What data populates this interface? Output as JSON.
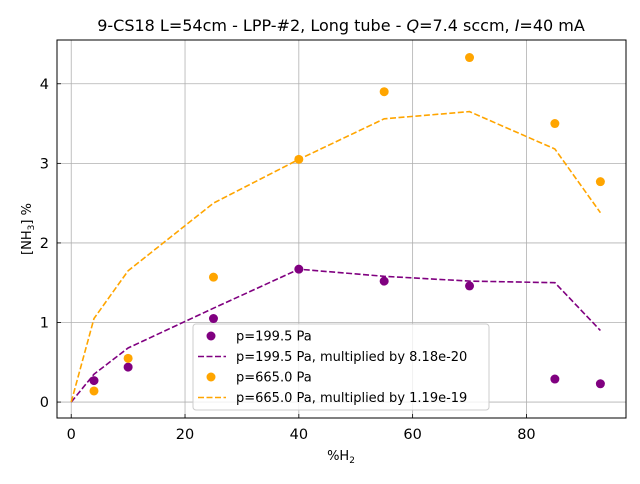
{
  "chart_data": {
    "type": "scatter",
    "title": "9-CS18 L=54cm - LPP-#2, Long tube - Q=7.4 sccm, I=40 mA",
    "title_parts": {
      "prefix": "9-CS18 L=54cm - LPP-#2, Long tube - ",
      "q_symbol": "Q",
      "q_value": "=7.4 sccm, ",
      "i_symbol": "I",
      "i_value": "=40 mA"
    },
    "xlabel": "%H",
    "xlabel_sub": "2",
    "ylabel": "[NH",
    "ylabel_sub": "3",
    "ylabel_suffix": "] %",
    "xlim": [
      -2.5,
      97.5
    ],
    "ylim": [
      -0.2,
      4.55
    ],
    "xticks": [
      0,
      20,
      40,
      60,
      80
    ],
    "yticks": [
      0,
      1,
      2,
      3,
      4
    ],
    "grid": true,
    "legend_position": "lower-center",
    "series": [
      {
        "name": "p=199.5 Pa",
        "kind": "scatter",
        "color": "#800080",
        "x": [
          4,
          10,
          25,
          40,
          55,
          70,
          85,
          93
        ],
        "y": [
          0.27,
          0.44,
          1.05,
          1.67,
          1.52,
          1.46,
          0.29,
          0.23
        ]
      },
      {
        "name": "p=199.5 Pa, multiplied by 8.18e-20",
        "kind": "line",
        "dash": true,
        "color": "#800080",
        "x": [
          0,
          4,
          10,
          25,
          40,
          55,
          70,
          85,
          93
        ],
        "y": [
          0.0,
          0.35,
          0.68,
          1.18,
          1.67,
          1.58,
          1.52,
          1.5,
          0.9
        ]
      },
      {
        "name": "p=665.0 Pa",
        "kind": "scatter",
        "color": "#FFA500",
        "x": [
          4,
          10,
          25,
          40,
          55,
          70,
          85,
          93
        ],
        "y": [
          0.14,
          0.55,
          1.57,
          3.05,
          3.9,
          4.33,
          3.5,
          2.77
        ]
      },
      {
        "name": "p=665.0 Pa, multiplied by 1.19e-19",
        "kind": "line",
        "dash": true,
        "color": "#FFA500",
        "x": [
          0,
          4,
          10,
          25,
          40,
          55,
          70,
          85,
          93
        ],
        "y": [
          0.0,
          1.05,
          1.65,
          2.5,
          3.05,
          3.56,
          3.65,
          3.18,
          2.38
        ]
      }
    ]
  }
}
